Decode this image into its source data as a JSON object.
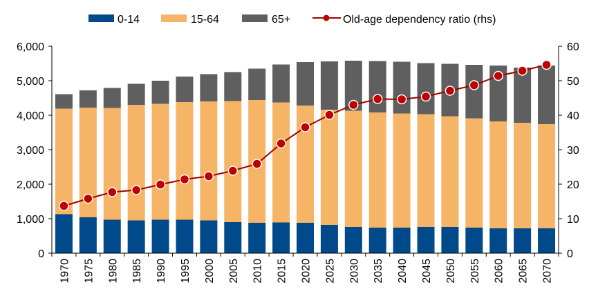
{
  "chart_data": {
    "type": "bar",
    "stacked": true,
    "title": "",
    "xlabel": "",
    "ylabel": "",
    "ylabel_right": "",
    "categories": [
      "1970",
      "1975",
      "1980",
      "1985",
      "1990",
      "1995",
      "2000",
      "2005",
      "2010",
      "2015",
      "2020",
      "2025",
      "2030",
      "2035",
      "2040",
      "2045",
      "2050",
      "2055",
      "2060",
      "2065",
      "2070"
    ],
    "series": [
      {
        "name": "0-14",
        "type": "bar",
        "axis": "left",
        "color": "#004A8C",
        "values": [
          1130,
          1040,
          970,
          950,
          970,
          970,
          950,
          900,
          880,
          890,
          880,
          820,
          760,
          740,
          740,
          760,
          760,
          740,
          720,
          720,
          720
        ]
      },
      {
        "name": "15-64",
        "type": "bar",
        "axis": "left",
        "color": "#F5B466",
        "values": [
          3060,
          3180,
          3240,
          3350,
          3360,
          3410,
          3450,
          3510,
          3560,
          3480,
          3400,
          3340,
          3370,
          3340,
          3310,
          3270,
          3210,
          3170,
          3100,
          3060,
          3020
        ]
      },
      {
        "name": "65+",
        "type": "bar",
        "axis": "left",
        "color": "#5F5F5F",
        "values": [
          420,
          500,
          580,
          610,
          670,
          740,
          790,
          840,
          910,
          1100,
          1260,
          1400,
          1450,
          1490,
          1500,
          1480,
          1520,
          1550,
          1620,
          1600,
          1700
        ]
      },
      {
        "name": "Old-age dependency ratio (rhs)",
        "type": "line",
        "axis": "right",
        "color": "#A00000",
        "marker_color": "#C00000",
        "values": [
          13.7,
          15.8,
          17.7,
          18.3,
          19.9,
          21.4,
          22.3,
          23.9,
          25.9,
          31.8,
          36.5,
          40.1,
          43.0,
          44.7,
          44.6,
          45.4,
          47.1,
          48.7,
          51.4,
          52.9,
          54.6
        ]
      }
    ],
    "ylim": [
      0,
      6000
    ],
    "y_ticks": [
      "0",
      "1,000",
      "2,000",
      "3,000",
      "4,000",
      "5,000",
      "6,000"
    ],
    "y2lim": [
      0,
      60
    ],
    "y2_ticks": [
      "0",
      "10",
      "20",
      "30",
      "40",
      "50",
      "60"
    ],
    "grid": false,
    "legend_position": "top"
  }
}
